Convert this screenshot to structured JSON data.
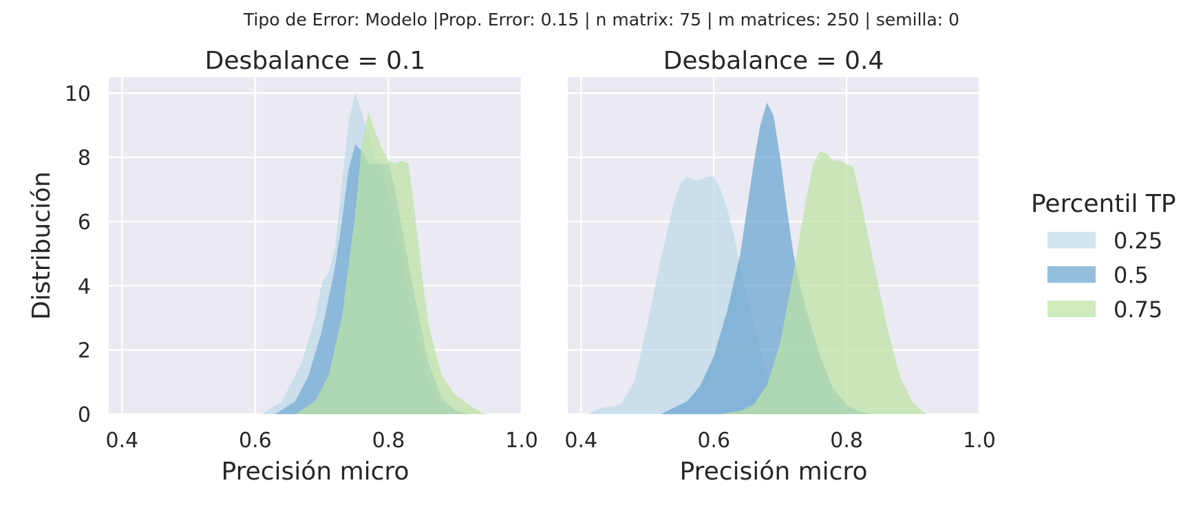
{
  "figure": {
    "suptitle": "Tipo de Error: Modelo |Prop. Error: 0.15 | n matrix: 75 | m matrices: 250 | semilla: 0",
    "legend_title": "Percentil TP"
  },
  "colors": {
    "background": "#eaeaf2",
    "grid": "#ffffff",
    "text": "#262626"
  },
  "chart_data": [
    {
      "type": "area",
      "title": "Desbalance = 0.1",
      "xlabel": "Precisión micro",
      "ylabel": "Distribución",
      "xlim": [
        0.38,
        1.0
      ],
      "ylim": [
        0,
        10.5
      ],
      "xticks": [
        "0.4",
        "0.6",
        "0.8",
        "1.0"
      ],
      "yticks": [
        "0",
        "2",
        "4",
        "6",
        "8",
        "10"
      ],
      "grid": true,
      "series": [
        {
          "name": "0.25",
          "color": "#b9d7e6",
          "opacity": 0.65,
          "x": [
            0.61,
            0.64,
            0.67,
            0.69,
            0.7,
            0.71,
            0.72,
            0.73,
            0.74,
            0.75,
            0.76,
            0.77,
            0.78,
            0.79,
            0.8,
            0.82,
            0.84,
            0.86,
            0.88,
            0.9,
            0.92
          ],
          "y": [
            0,
            0.4,
            1.6,
            3.0,
            4.1,
            4.4,
            5.2,
            7.2,
            9.1,
            10.0,
            9.4,
            8.6,
            8.0,
            7.6,
            6.8,
            4.8,
            2.6,
            1.0,
            0.35,
            0.08,
            0
          ]
        },
        {
          "name": "0.5",
          "color": "#6aa5d0",
          "opacity": 0.65,
          "x": [
            0.63,
            0.66,
            0.68,
            0.7,
            0.72,
            0.73,
            0.74,
            0.75,
            0.76,
            0.77,
            0.78,
            0.79,
            0.8,
            0.81,
            0.82,
            0.84,
            0.86,
            0.88,
            0.9,
            0.92
          ],
          "y": [
            0,
            0.4,
            1.2,
            2.6,
            4.6,
            6.0,
            7.6,
            8.4,
            8.2,
            7.8,
            7.8,
            7.8,
            7.8,
            7.0,
            5.8,
            3.6,
            1.6,
            0.5,
            0.12,
            0
          ]
        },
        {
          "name": "0.75",
          "color": "#bde3a2",
          "opacity": 0.72,
          "x": [
            0.66,
            0.69,
            0.71,
            0.73,
            0.75,
            0.76,
            0.77,
            0.78,
            0.79,
            0.8,
            0.81,
            0.82,
            0.83,
            0.84,
            0.85,
            0.86,
            0.88,
            0.9,
            0.92,
            0.94,
            0.95
          ],
          "y": [
            0,
            0.4,
            1.2,
            3.0,
            6.2,
            8.4,
            9.4,
            8.8,
            8.3,
            7.9,
            7.8,
            7.9,
            7.8,
            6.2,
            4.4,
            2.8,
            1.2,
            0.6,
            0.3,
            0.05,
            0
          ]
        }
      ]
    },
    {
      "type": "area",
      "title": "Desbalance = 0.4",
      "xlabel": "Precisión micro",
      "ylabel": "",
      "xlim": [
        0.38,
        1.0
      ],
      "ylim": [
        0,
        10.5
      ],
      "xticks": [
        "0.4",
        "0.6",
        "0.8",
        "1.0"
      ],
      "yticks": [],
      "grid": true,
      "series": [
        {
          "name": "0.25",
          "color": "#b9d7e6",
          "opacity": 0.65,
          "x": [
            0.41,
            0.43,
            0.45,
            0.46,
            0.48,
            0.5,
            0.52,
            0.54,
            0.55,
            0.56,
            0.57,
            0.58,
            0.59,
            0.6,
            0.61,
            0.62,
            0.63,
            0.64,
            0.66,
            0.68,
            0.7,
            0.72,
            0.74,
            0.76
          ],
          "y": [
            0,
            0.2,
            0.25,
            0.3,
            1.0,
            2.8,
            4.8,
            6.6,
            7.2,
            7.4,
            7.3,
            7.3,
            7.4,
            7.4,
            7.0,
            6.4,
            5.6,
            4.6,
            2.8,
            1.3,
            0.5,
            0.15,
            0.04,
            0
          ]
        },
        {
          "name": "0.5",
          "color": "#6aa5d0",
          "opacity": 0.72,
          "x": [
            0.52,
            0.56,
            0.58,
            0.6,
            0.62,
            0.64,
            0.65,
            0.66,
            0.67,
            0.68,
            0.69,
            0.7,
            0.71,
            0.72,
            0.73,
            0.74,
            0.76,
            0.78,
            0.8,
            0.82,
            0.84
          ],
          "y": [
            0,
            0.4,
            0.9,
            1.8,
            3.2,
            5.0,
            6.4,
            7.8,
            9.0,
            9.7,
            9.3,
            8.0,
            6.4,
            5.0,
            4.0,
            3.2,
            1.8,
            0.8,
            0.3,
            0.08,
            0
          ]
        },
        {
          "name": "0.75",
          "color": "#bde3a2",
          "opacity": 0.72,
          "x": [
            0.61,
            0.64,
            0.66,
            0.68,
            0.7,
            0.72,
            0.74,
            0.75,
            0.76,
            0.77,
            0.78,
            0.79,
            0.8,
            0.81,
            0.82,
            0.84,
            0.86,
            0.88,
            0.9,
            0.92
          ],
          "y": [
            0,
            0.1,
            0.3,
            0.9,
            2.2,
            4.4,
            6.8,
            7.8,
            8.2,
            8.1,
            7.9,
            7.9,
            7.8,
            7.7,
            6.8,
            4.8,
            2.8,
            1.2,
            0.35,
            0
          ]
        }
      ]
    }
  ]
}
